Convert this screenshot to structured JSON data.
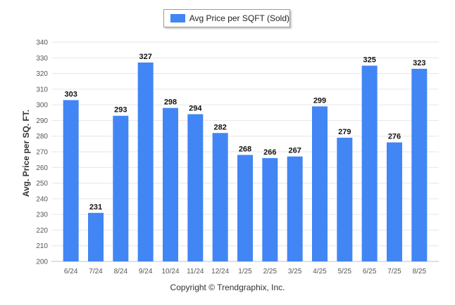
{
  "chart_data": {
    "type": "bar",
    "categories": [
      "6/24",
      "7/24",
      "8/24",
      "9/24",
      "10/24",
      "11/24",
      "12/24",
      "1/25",
      "2/25",
      "3/25",
      "4/25",
      "5/25",
      "6/25",
      "7/25",
      "8/25"
    ],
    "series": [
      {
        "name": "Avg Price per SQFT (Sold)",
        "values": [
          303,
          231,
          293,
          327,
          298,
          294,
          282,
          268,
          266,
          267,
          299,
          279,
          325,
          276,
          323
        ]
      }
    ],
    "ylabel": "Avg. Price per SQ. FT.",
    "xlabel": "",
    "ylim": [
      200,
      340
    ],
    "yticks": [
      200,
      210,
      220,
      230,
      240,
      250,
      260,
      270,
      280,
      290,
      300,
      310,
      320,
      330,
      340
    ],
    "grid": true,
    "legend_position": "top-center",
    "color": "#4285f4"
  },
  "footer": {
    "copyright": "Copyright © Trendgraphix, Inc."
  }
}
